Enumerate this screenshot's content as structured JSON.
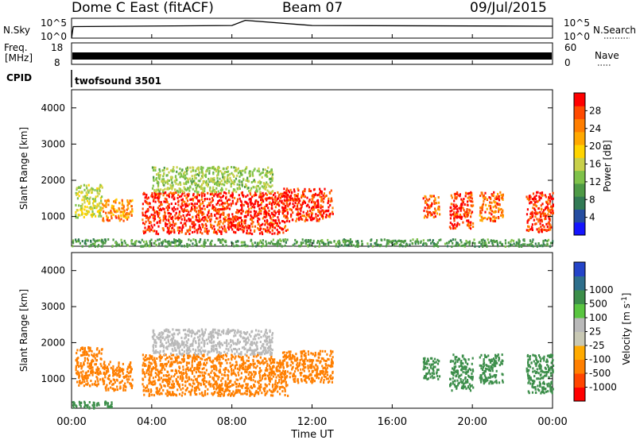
{
  "header": {
    "title": "Dome C East (fitACF)",
    "beam": "Beam 07",
    "date": "09/Jul/2015"
  },
  "nsky": {
    "label": "N.Sky",
    "right_label": "N.Search",
    "ticks_left": [
      "10^5",
      "10^0"
    ],
    "ticks_right": [
      "10^5",
      "10^0"
    ]
  },
  "freq": {
    "label_line1": "Freq.",
    "label_line2": "[MHz]",
    "right_label": "Nave",
    "ticks_left": [
      "18",
      "8"
    ],
    "ticks_right": [
      "60",
      "0"
    ]
  },
  "cpid": {
    "label": "CPID",
    "program": "twofsound 3501"
  },
  "x_axis": {
    "label": "Time UT",
    "ticks": [
      "00:00",
      "04:00",
      "08:00",
      "12:00",
      "16:00",
      "20:00",
      "00:00"
    ]
  },
  "colors": {
    "power_scale": [
      "#1515ff",
      "#254da0",
      "#327a55",
      "#4e9a46",
      "#7fc24a",
      "#c8d04a",
      "#ffd400",
      "#ffa800",
      "#ff7e00",
      "#ff4a00",
      "#ff0000"
    ],
    "velocity_scale": [
      "#ff0000",
      "#ff4500",
      "#ff7f00",
      "#ffaa00",
      "#c8c8b4",
      "#b9b9b9",
      "#59c540",
      "#3c8e4a",
      "#2e6f8c",
      "#2444c8"
    ]
  },
  "chart_data": [
    {
      "type": "line",
      "title": "N.Sky",
      "y_scale": "log",
      "ylim": [
        "10^0",
        "10^5"
      ],
      "series": [
        {
          "name": "N.Sky",
          "values": [
            {
              "x": "00:00",
              "y": 1
            },
            {
              "x": "00:05",
              "y": 800
            },
            {
              "x": "08:00",
              "y": 1500
            },
            {
              "x": "08:40",
              "y": 30000
            },
            {
              "x": "12:00",
              "y": 1500
            },
            {
              "x": "24:00",
              "y": 1000
            }
          ]
        }
      ]
    },
    {
      "type": "line",
      "title": "Freq.",
      "ylabel": "[MHz]",
      "ylim": [
        8,
        18
      ],
      "series": [
        {
          "name": "Freq.",
          "values": [
            {
              "x": "00:00",
              "y": 11
            },
            {
              "x": "24:00",
              "y": 11
            }
          ]
        }
      ]
    },
    {
      "type": "heatmap",
      "ylabel": "Slant Range [km]",
      "xlabel": "",
      "xlim": [
        "00:00",
        "24:00"
      ],
      "ylim": [
        180,
        4500
      ],
      "y_ticks": [
        1000,
        2000,
        3000,
        4000
      ],
      "colorbar": {
        "label": "Power [dB]",
        "ticks": [
          "4",
          "8",
          "12",
          "16",
          "20",
          "24",
          "28"
        ],
        "range": [
          0,
          32
        ]
      },
      "regions": [
        {
          "x": [
            "00:10",
            "01:30"
          ],
          "y": [
            1000,
            1900
          ],
          "value": 16
        },
        {
          "x": [
            "01:30",
            "03:00"
          ],
          "y": [
            900,
            1500
          ],
          "value": 24
        },
        {
          "x": [
            "03:30",
            "10:45"
          ],
          "y": [
            550,
            1700
          ],
          "value": 30
        },
        {
          "x": [
            "04:00",
            "10:00"
          ],
          "y": [
            1700,
            2400
          ],
          "value": 14
        },
        {
          "x": [
            "10:30",
            "13:00"
          ],
          "y": [
            900,
            1800
          ],
          "value": 30
        },
        {
          "x": [
            "17:30",
            "18:20"
          ],
          "y": [
            1000,
            1600
          ],
          "value": 26
        },
        {
          "x": [
            "18:50",
            "20:00"
          ],
          "y": [
            700,
            1700
          ],
          "value": 30
        },
        {
          "x": [
            "20:20",
            "21:30"
          ],
          "y": [
            900,
            1700
          ],
          "value": 26
        },
        {
          "x": [
            "22:40",
            "24:00"
          ],
          "y": [
            600,
            1700
          ],
          "value": 30
        },
        {
          "x": [
            "00:00",
            "24:00"
          ],
          "y": [
            200,
            400
          ],
          "value": 10
        }
      ]
    },
    {
      "type": "heatmap",
      "ylabel": "Slant Range [km]",
      "xlabel": "Time UT",
      "xlim": [
        "00:00",
        "24:00"
      ],
      "ylim": [
        180,
        4500
      ],
      "y_ticks": [
        1000,
        2000,
        3000,
        4000
      ],
      "colorbar": {
        "label": "Velocity [m s^-1]",
        "ticks": [
          "-1000",
          "-500",
          "-100",
          "-25",
          "25",
          "100",
          "500",
          "1000"
        ]
      },
      "regions": [
        {
          "x": [
            "00:10",
            "01:30"
          ],
          "y": [
            800,
            1900
          ],
          "value": -200
        },
        {
          "x": [
            "01:30",
            "03:00"
          ],
          "y": [
            700,
            1500
          ],
          "value": -200
        },
        {
          "x": [
            "03:30",
            "10:45"
          ],
          "y": [
            550,
            1700
          ],
          "value": -200
        },
        {
          "x": [
            "04:00",
            "10:00"
          ],
          "y": [
            1700,
            2400
          ],
          "value": 0
        },
        {
          "x": [
            "10:30",
            "13:00"
          ],
          "y": [
            900,
            1800
          ],
          "value": -200
        },
        {
          "x": [
            "17:30",
            "18:20"
          ],
          "y": [
            1000,
            1600
          ],
          "value": 200
        },
        {
          "x": [
            "18:50",
            "20:00"
          ],
          "y": [
            700,
            1700
          ],
          "value": 200
        },
        {
          "x": [
            "20:20",
            "21:30"
          ],
          "y": [
            900,
            1700
          ],
          "value": 200
        },
        {
          "x": [
            "22:40",
            "24:00"
          ],
          "y": [
            600,
            1700
          ],
          "value": 200
        },
        {
          "x": [
            "00:00",
            "02:00"
          ],
          "y": [
            200,
            400
          ],
          "value": 80
        }
      ]
    }
  ]
}
